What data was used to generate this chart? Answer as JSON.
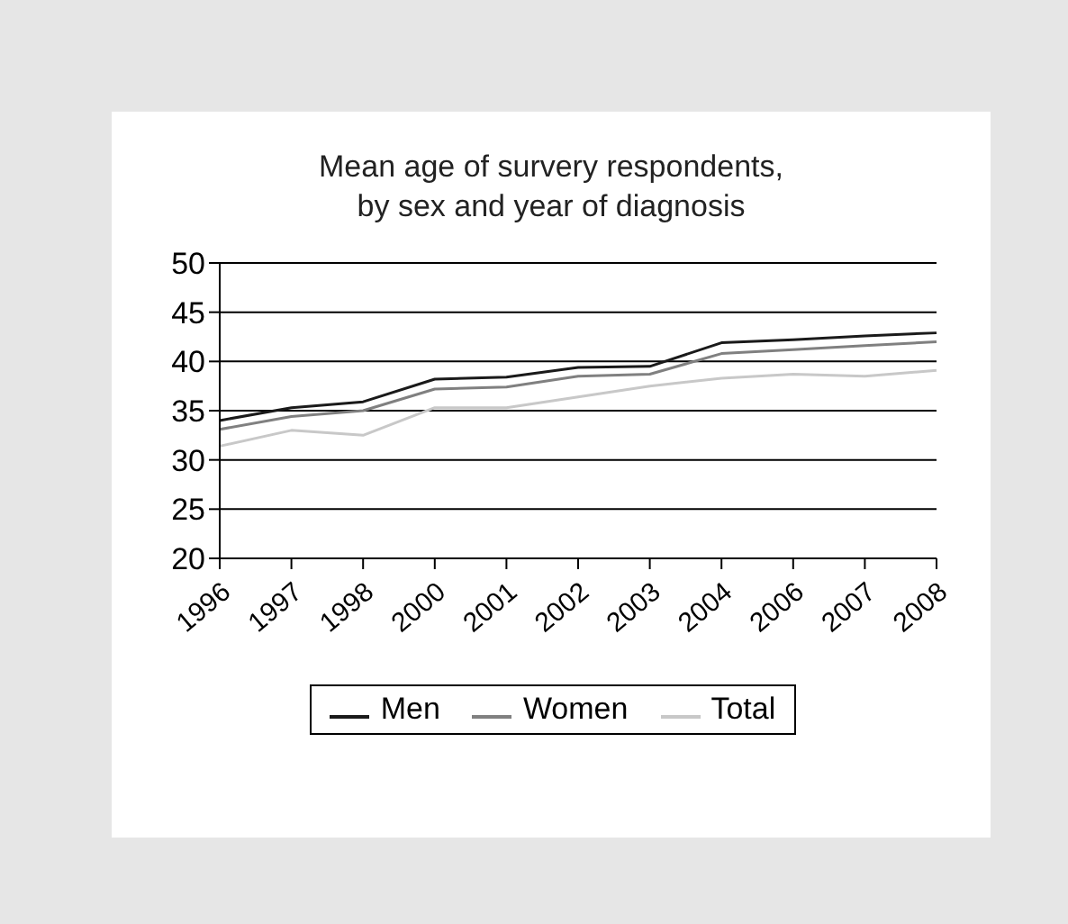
{
  "chart_data": {
    "type": "line",
    "title": "Mean age of survery respondents,\nby sex and year of diagnosis",
    "categories": [
      "1996",
      "1997",
      "1998",
      "2000",
      "2001",
      "2002",
      "2003",
      "2004",
      "2006",
      "2007",
      "2008"
    ],
    "series": [
      {
        "name": "Men",
        "color": "#1a1a1a",
        "values": [
          34.0,
          35.3,
          35.9,
          38.2,
          38.4,
          39.4,
          39.5,
          41.9,
          42.2,
          42.6,
          42.9
        ]
      },
      {
        "name": "Women",
        "color": "#808080",
        "values": [
          33.1,
          34.4,
          35.0,
          37.2,
          37.4,
          38.5,
          38.7,
          40.8,
          41.2,
          41.6,
          42.0
        ]
      },
      {
        "name": "Total",
        "color": "#c8c8c8",
        "values": [
          31.4,
          33.0,
          32.5,
          35.3,
          35.3,
          36.4,
          37.5,
          38.3,
          38.7,
          38.5,
          39.1
        ]
      }
    ],
    "ylim": [
      20,
      50
    ],
    "yticks": [
      20,
      25,
      30,
      35,
      40,
      45,
      50
    ],
    "grid": "y",
    "legend": "bottom",
    "marker": "none",
    "line_style": "solid"
  }
}
